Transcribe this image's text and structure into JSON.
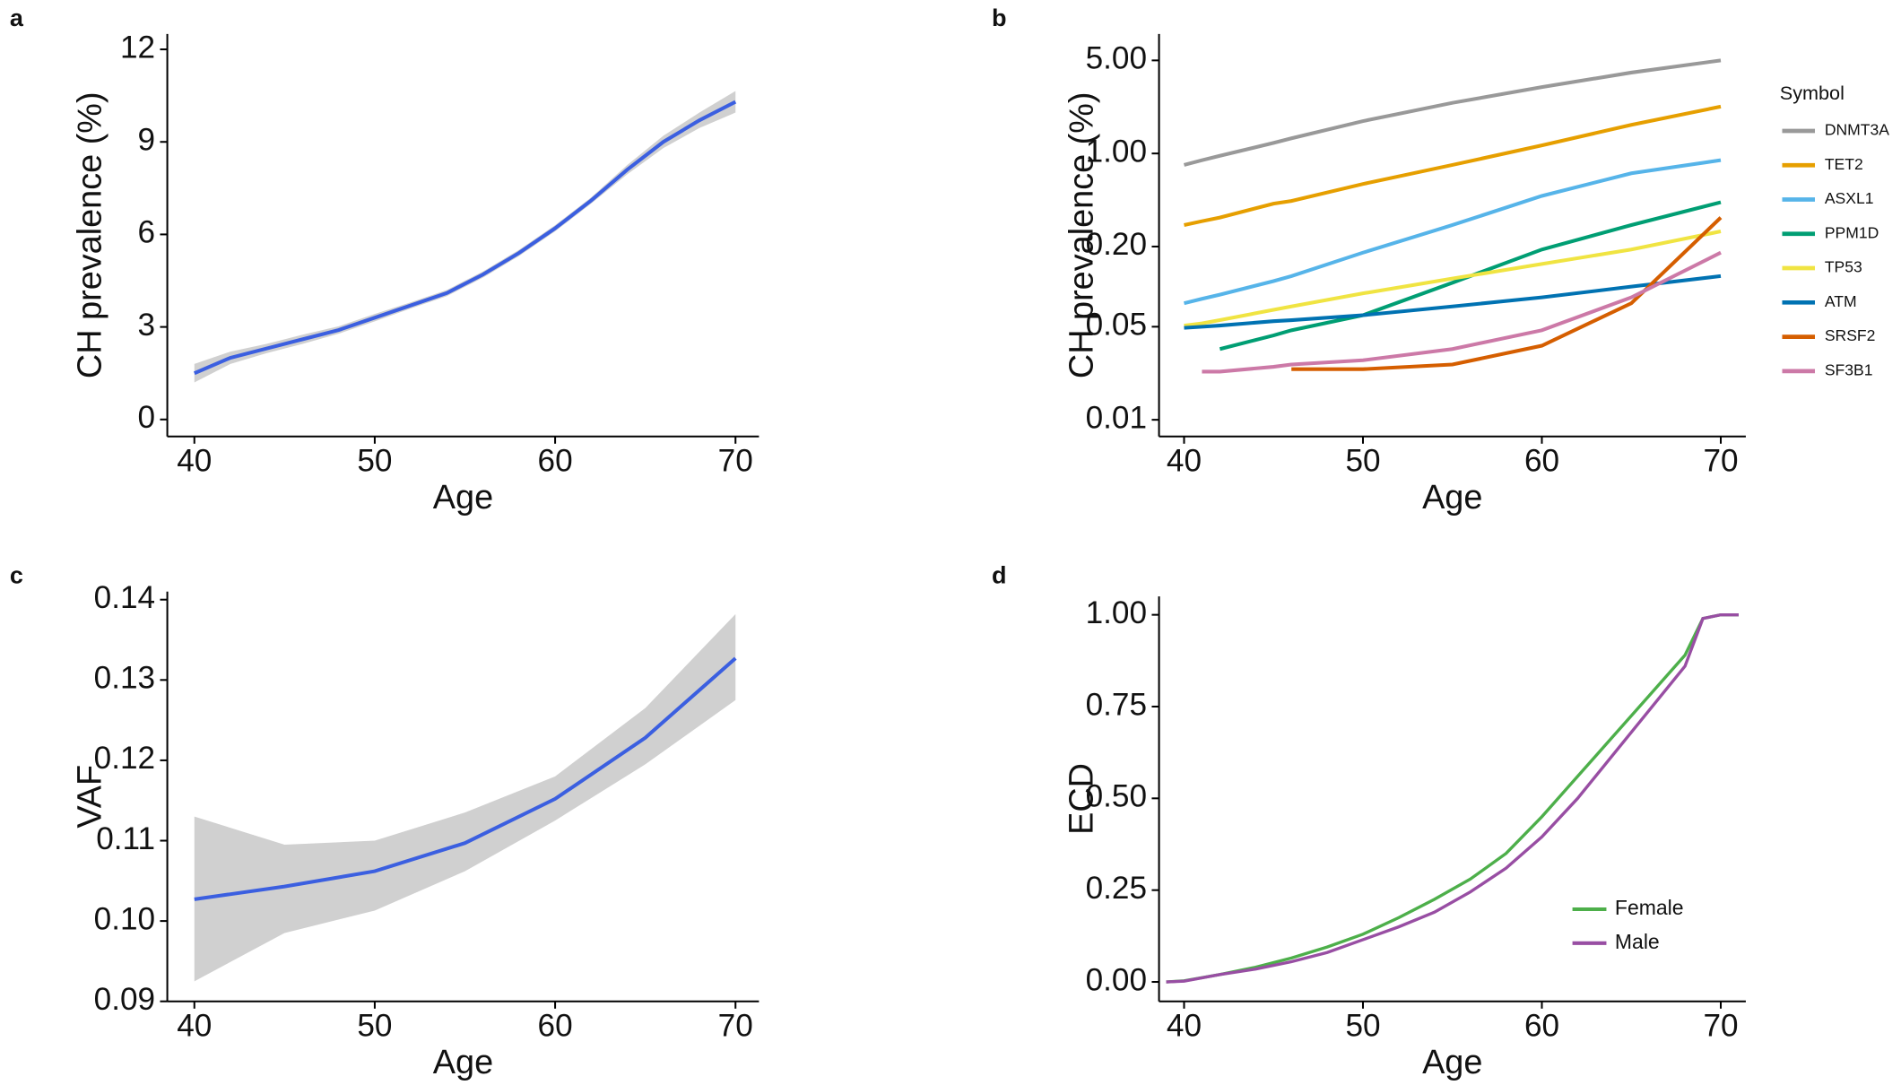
{
  "chart_data": [
    {
      "type": "line",
      "panel": "a",
      "x_label": "Age",
      "y_label": "CH prevalence (%)",
      "x": [
        40,
        42,
        44,
        46,
        48,
        50,
        52,
        54,
        56,
        58,
        60,
        62,
        64,
        66,
        68,
        70
      ],
      "values": [
        1.5,
        2.0,
        2.3,
        2.6,
        2.9,
        3.3,
        3.7,
        4.1,
        4.7,
        5.4,
        6.2,
        7.1,
        8.1,
        9.0,
        9.7,
        10.3
      ],
      "lower": [
        1.2,
        1.8,
        2.15,
        2.45,
        2.78,
        3.18,
        3.6,
        4.0,
        4.6,
        5.3,
        6.1,
        7.0,
        7.95,
        8.8,
        9.45,
        9.95
      ],
      "upper": [
        1.8,
        2.2,
        2.45,
        2.75,
        3.02,
        3.42,
        3.8,
        4.2,
        4.8,
        5.5,
        6.3,
        7.2,
        8.25,
        9.2,
        9.95,
        10.65
      ],
      "color": "#3b5fe0",
      "band_color": "#c8c8c8",
      "xlim": [
        38.5,
        71.3
      ],
      "xticks": [
        40,
        50,
        60,
        70
      ],
      "ylim": [
        -0.55,
        12.5
      ],
      "yticks": [
        0,
        3,
        6,
        9,
        12
      ]
    },
    {
      "type": "multiline",
      "panel": "b",
      "x_label": "Age",
      "y_label": "CH prevalence (%)",
      "log_y": true,
      "legend_title": "Symbol",
      "legend_position": "right",
      "x": [
        40,
        41,
        42,
        45,
        46,
        50,
        55,
        60,
        65,
        70
      ],
      "series": [
        {
          "name": "DNMT3A",
          "color": "#999999",
          "values": [
            0.82,
            0.89,
            0.96,
            1.2,
            1.3,
            1.75,
            2.4,
            3.15,
            4.05,
            5.0
          ]
        },
        {
          "name": "TET2",
          "color": "#E69F00",
          "values": [
            0.29,
            0.31,
            0.33,
            0.42,
            0.44,
            0.59,
            0.82,
            1.15,
            1.64,
            2.25
          ]
        },
        {
          "name": "ASXL1",
          "color": "#56B4E9",
          "values": [
            0.075,
            0.081,
            0.087,
            0.11,
            0.12,
            0.18,
            0.29,
            0.48,
            0.71,
            0.89
          ]
        },
        {
          "name": "PPM1D",
          "color": "#009E73",
          "values": [
            null,
            null,
            0.034,
            0.043,
            0.047,
            0.061,
            0.107,
            0.19,
            0.29,
            0.43
          ]
        },
        {
          "name": "TP53",
          "color": "#F0E442",
          "values": [
            0.051,
            0.053,
            0.056,
            0.067,
            0.071,
            0.089,
            0.115,
            0.148,
            0.19,
            0.26
          ]
        },
        {
          "name": "ATM",
          "color": "#0072B2",
          "values": [
            0.049,
            0.05,
            0.051,
            0.055,
            0.056,
            0.061,
            0.071,
            0.083,
            0.1,
            0.12
          ]
        },
        {
          "name": "SRSF2",
          "color": "#D55E00",
          "values": [
            null,
            null,
            null,
            null,
            0.024,
            0.024,
            0.026,
            0.036,
            0.075,
            0.33
          ]
        },
        {
          "name": "SF3B1",
          "color": "#CC79A7",
          "values": [
            null,
            0.023,
            0.023,
            0.025,
            0.026,
            0.028,
            0.034,
            0.047,
            0.083,
            0.18
          ]
        }
      ],
      "xlim": [
        38.6,
        71.4
      ],
      "xticks": [
        40,
        50,
        60,
        70
      ],
      "ylim": [
        0.0075,
        7.9
      ],
      "yticks": [
        0.01,
        0.05,
        {
          "value": 0.2,
          "label": "0.20"
        },
        {
          "value": 1,
          "label": "1.00"
        },
        {
          "value": 5,
          "label": "5.00"
        }
      ]
    },
    {
      "type": "line",
      "panel": "c",
      "x_label": "Age",
      "y_label": "VAF",
      "x": [
        40,
        45,
        50,
        55,
        60,
        65,
        70
      ],
      "values": [
        0.1027,
        0.1043,
        0.1062,
        0.1097,
        0.1152,
        0.1228,
        0.1327
      ],
      "lower": [
        0.0925,
        0.0985,
        0.1013,
        0.1062,
        0.1125,
        0.1195,
        0.1275
      ],
      "upper": [
        0.113,
        0.1095,
        0.11,
        0.1135,
        0.118,
        0.1265,
        0.1382
      ],
      "color": "#3b5fe0",
      "band_color": "#c8c8c8",
      "xlim": [
        38.5,
        71.3
      ],
      "xticks": [
        40,
        50,
        60,
        70
      ],
      "ylim": [
        0.09,
        0.141
      ],
      "yticks": [
        0.09,
        {
          "value": 0.1,
          "label": "0.10"
        },
        0.11,
        0.12,
        0.13,
        0.14
      ]
    },
    {
      "type": "multiline",
      "panel": "d",
      "x_label": "Age",
      "y_label": "ECD",
      "legend_position": "bottom-right",
      "x": [
        39,
        40,
        42,
        44,
        46,
        48,
        50,
        52,
        54,
        56,
        58,
        60,
        62,
        64,
        66,
        68,
        69,
        70,
        71
      ],
      "series": [
        {
          "name": "Female",
          "color": "#4DAF4A",
          "values": [
            0,
            0.003,
            0.02,
            0.04,
            0.065,
            0.095,
            0.13,
            0.175,
            0.225,
            0.28,
            0.35,
            0.45,
            0.56,
            0.67,
            0.78,
            0.89,
            0.99,
            1.0,
            1.0
          ]
        },
        {
          "name": "Male",
          "color": "#984EA3",
          "values": [
            0,
            0.002,
            0.02,
            0.035,
            0.055,
            0.08,
            0.115,
            0.15,
            0.19,
            0.245,
            0.31,
            0.395,
            0.5,
            0.62,
            0.74,
            0.86,
            0.99,
            1.0,
            1.0
          ]
        }
      ],
      "xlim": [
        38.6,
        71.4
      ],
      "xticks": [
        40,
        50,
        60,
        70
      ],
      "ylim": [
        -0.053,
        1.05
      ],
      "yticks": [
        {
          "value": 0,
          "label": "0.00"
        },
        0.25,
        {
          "value": 0.5,
          "label": "0.50"
        },
        0.75,
        {
          "value": 1,
          "label": "1.00"
        }
      ]
    }
  ]
}
